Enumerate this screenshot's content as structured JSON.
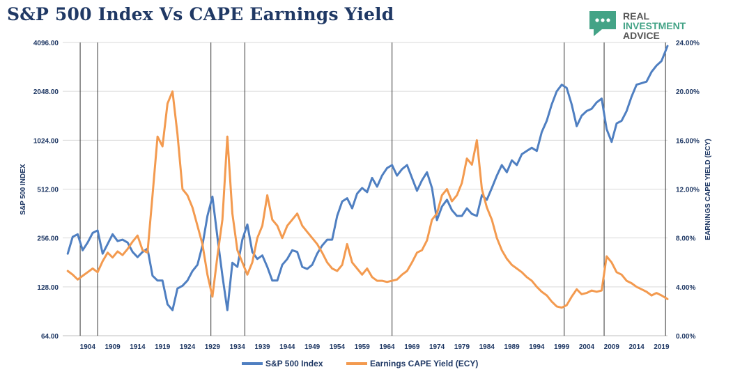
{
  "title": "S&P 500 Index Vs CAPE Earnings Yield",
  "logo": {
    "line1": "REAL",
    "line2": "INVESTMENT",
    "line3": "ADVICE",
    "icon": "speech-bubble-dots-icon"
  },
  "colors": {
    "spx": "#4f7fc1",
    "ecy": "#f39a4f",
    "text": "#1f3864",
    "grid": "#d9d9d9",
    "vline": "#333333"
  },
  "chart_data": {
    "type": "line",
    "x_ticks": [
      "1904",
      "1909",
      "1914",
      "1919",
      "1924",
      "1929",
      "1934",
      "1939",
      "1944",
      "1949",
      "1954",
      "1959",
      "1964",
      "1969",
      "1974",
      "1979",
      "1984",
      "1989",
      "1994",
      "1999",
      "2004",
      "2009",
      "2014",
      "2019"
    ],
    "left_axis": {
      "label": "S&P 500 INDEX",
      "scale": "log2",
      "ticks": [
        "64.00",
        "128.00",
        "256.00",
        "512.00",
        "1024.00",
        "2048.00",
        "4096.00"
      ],
      "range": [
        64,
        4096
      ]
    },
    "right_axis": {
      "label": "EARNINGS CAPE YIELD (ECY)",
      "ticks": [
        "0.00%",
        "4.00%",
        "8.00%",
        "12.00%",
        "16.00%",
        "20.00%",
        "24.00%"
      ],
      "range": [
        0,
        24
      ]
    },
    "vertical_lines": [
      1902.5,
      1906,
      1928.7,
      1935.5,
      1965,
      1999.5,
      2007.5,
      2019.8
    ],
    "x_range": [
      1899,
      2020.2
    ],
    "grid": "horizontal",
    "legend_position": "bottom",
    "series": [
      {
        "name": "S&P 500 Index",
        "axis": "left",
        "points": [
          [
            1900,
            205
          ],
          [
            1901,
            260
          ],
          [
            1902,
            270
          ],
          [
            1903,
            215
          ],
          [
            1904,
            240
          ],
          [
            1905,
            275
          ],
          [
            1906,
            285
          ],
          [
            1907,
            205
          ],
          [
            1908,
            235
          ],
          [
            1909,
            270
          ],
          [
            1910,
            245
          ],
          [
            1911,
            250
          ],
          [
            1912,
            240
          ],
          [
            1913,
            210
          ],
          [
            1914,
            195
          ],
          [
            1915,
            210
          ],
          [
            1916,
            220
          ],
          [
            1917,
            150
          ],
          [
            1918,
            140
          ],
          [
            1919,
            140
          ],
          [
            1920,
            100
          ],
          [
            1921,
            92
          ],
          [
            1922,
            125
          ],
          [
            1923,
            130
          ],
          [
            1924,
            140
          ],
          [
            1925,
            160
          ],
          [
            1926,
            175
          ],
          [
            1927,
            230
          ],
          [
            1928,
            350
          ],
          [
            1929,
            460
          ],
          [
            1930,
            260
          ],
          [
            1931,
            150
          ],
          [
            1932,
            92
          ],
          [
            1933,
            180
          ],
          [
            1934,
            170
          ],
          [
            1935,
            250
          ],
          [
            1936,
            310
          ],
          [
            1937,
            210
          ],
          [
            1938,
            190
          ],
          [
            1939,
            200
          ],
          [
            1940,
            170
          ],
          [
            1941,
            140
          ],
          [
            1942,
            140
          ],
          [
            1943,
            175
          ],
          [
            1944,
            190
          ],
          [
            1945,
            215
          ],
          [
            1946,
            210
          ],
          [
            1947,
            170
          ],
          [
            1948,
            165
          ],
          [
            1949,
            175
          ],
          [
            1950,
            205
          ],
          [
            1951,
            230
          ],
          [
            1952,
            250
          ],
          [
            1953,
            250
          ],
          [
            1954,
            350
          ],
          [
            1955,
            430
          ],
          [
            1956,
            450
          ],
          [
            1957,
            390
          ],
          [
            1958,
            480
          ],
          [
            1959,
            520
          ],
          [
            1960,
            490
          ],
          [
            1961,
            600
          ],
          [
            1962,
            530
          ],
          [
            1963,
            620
          ],
          [
            1964,
            690
          ],
          [
            1965,
            720
          ],
          [
            1966,
            620
          ],
          [
            1967,
            680
          ],
          [
            1968,
            720
          ],
          [
            1969,
            600
          ],
          [
            1970,
            500
          ],
          [
            1971,
            580
          ],
          [
            1972,
            650
          ],
          [
            1973,
            520
          ],
          [
            1974,
            330
          ],
          [
            1975,
            400
          ],
          [
            1976,
            440
          ],
          [
            1977,
            380
          ],
          [
            1978,
            350
          ],
          [
            1979,
            350
          ],
          [
            1980,
            390
          ],
          [
            1981,
            360
          ],
          [
            1982,
            350
          ],
          [
            1983,
            470
          ],
          [
            1984,
            440
          ],
          [
            1985,
            520
          ],
          [
            1986,
            620
          ],
          [
            1987,
            720
          ],
          [
            1988,
            650
          ],
          [
            1989,
            770
          ],
          [
            1990,
            720
          ],
          [
            1991,
            840
          ],
          [
            1992,
            880
          ],
          [
            1993,
            920
          ],
          [
            1994,
            880
          ],
          [
            1995,
            1150
          ],
          [
            1996,
            1350
          ],
          [
            1997,
            1700
          ],
          [
            1998,
            2050
          ],
          [
            1999,
            2250
          ],
          [
            2000,
            2150
          ],
          [
            2001,
            1700
          ],
          [
            2002,
            1250
          ],
          [
            2003,
            1450
          ],
          [
            2004,
            1550
          ],
          [
            2005,
            1600
          ],
          [
            2006,
            1750
          ],
          [
            2007,
            1850
          ],
          [
            2008,
            1200
          ],
          [
            2009,
            1000
          ],
          [
            2010,
            1300
          ],
          [
            2011,
            1350
          ],
          [
            2012,
            1550
          ],
          [
            2013,
            1900
          ],
          [
            2014,
            2250
          ],
          [
            2015,
            2300
          ],
          [
            2016,
            2350
          ],
          [
            2017,
            2700
          ],
          [
            2018,
            2950
          ],
          [
            2019,
            3150
          ],
          [
            2020.2,
            3900
          ]
        ]
      },
      {
        "name": "Earnings CAPE Yield (ECY)",
        "axis": "right",
        "points": [
          [
            1900,
            5.3
          ],
          [
            1901,
            5.0
          ],
          [
            1902,
            4.6
          ],
          [
            1903,
            4.9
          ],
          [
            1904,
            5.2
          ],
          [
            1905,
            5.5
          ],
          [
            1906,
            5.2
          ],
          [
            1907,
            6.1
          ],
          [
            1908,
            6.8
          ],
          [
            1909,
            6.4
          ],
          [
            1910,
            6.9
          ],
          [
            1911,
            6.6
          ],
          [
            1912,
            7.1
          ],
          [
            1913,
            7.7
          ],
          [
            1914,
            8.2
          ],
          [
            1915,
            7.0
          ],
          [
            1916,
            6.8
          ],
          [
            1917,
            11.5
          ],
          [
            1918,
            16.3
          ],
          [
            1919,
            15.5
          ],
          [
            1920,
            19.0
          ],
          [
            1921,
            20.0
          ],
          [
            1922,
            16.5
          ],
          [
            1923,
            12.0
          ],
          [
            1924,
            11.5
          ],
          [
            1925,
            10.5
          ],
          [
            1926,
            9.0
          ],
          [
            1927,
            7.5
          ],
          [
            1928,
            5.0
          ],
          [
            1929,
            3.2
          ],
          [
            1930,
            6.5
          ],
          [
            1931,
            9.5
          ],
          [
            1932,
            16.3
          ],
          [
            1933,
            10.0
          ],
          [
            1934,
            7.0
          ],
          [
            1935,
            6.0
          ],
          [
            1936,
            5.0
          ],
          [
            1937,
            6.0
          ],
          [
            1938,
            8.0
          ],
          [
            1939,
            9.0
          ],
          [
            1940,
            11.5
          ],
          [
            1941,
            9.5
          ],
          [
            1942,
            9.0
          ],
          [
            1943,
            8.0
          ],
          [
            1944,
            9.0
          ],
          [
            1945,
            9.5
          ],
          [
            1946,
            10.0
          ],
          [
            1947,
            9.0
          ],
          [
            1948,
            8.5
          ],
          [
            1949,
            8.0
          ],
          [
            1950,
            7.5
          ],
          [
            1951,
            6.8
          ],
          [
            1952,
            6.0
          ],
          [
            1953,
            5.5
          ],
          [
            1954,
            5.3
          ],
          [
            1955,
            5.8
          ],
          [
            1956,
            7.5
          ],
          [
            1957,
            6.0
          ],
          [
            1958,
            5.5
          ],
          [
            1959,
            5.0
          ],
          [
            1960,
            5.5
          ],
          [
            1961,
            4.8
          ],
          [
            1962,
            4.5
          ],
          [
            1963,
            4.5
          ],
          [
            1964,
            4.4
          ],
          [
            1965,
            4.5
          ],
          [
            1966,
            4.6
          ],
          [
            1967,
            5.0
          ],
          [
            1968,
            5.3
          ],
          [
            1969,
            6.0
          ],
          [
            1970,
            6.8
          ],
          [
            1971,
            7.0
          ],
          [
            1972,
            7.8
          ],
          [
            1973,
            9.5
          ],
          [
            1974,
            10.0
          ],
          [
            1975,
            11.5
          ],
          [
            1976,
            12.0
          ],
          [
            1977,
            11.0
          ],
          [
            1978,
            11.5
          ],
          [
            1979,
            12.5
          ],
          [
            1980,
            14.5
          ],
          [
            1981,
            14.0
          ],
          [
            1982,
            16.0
          ],
          [
            1983,
            12.0
          ],
          [
            1984,
            10.5
          ],
          [
            1985,
            9.5
          ],
          [
            1986,
            8.0
          ],
          [
            1987,
            7.0
          ],
          [
            1988,
            6.3
          ],
          [
            1989,
            5.8
          ],
          [
            1990,
            5.5
          ],
          [
            1991,
            5.2
          ],
          [
            1992,
            4.8
          ],
          [
            1993,
            4.5
          ],
          [
            1994,
            4.0
          ],
          [
            1995,
            3.6
          ],
          [
            1996,
            3.3
          ],
          [
            1997,
            2.8
          ],
          [
            1998,
            2.4
          ],
          [
            1999,
            2.3
          ],
          [
            2000,
            2.5
          ],
          [
            2001,
            3.2
          ],
          [
            2002,
            3.8
          ],
          [
            2003,
            3.4
          ],
          [
            2004,
            3.5
          ],
          [
            2005,
            3.7
          ],
          [
            2006,
            3.6
          ],
          [
            2007,
            3.7
          ],
          [
            2008,
            6.5
          ],
          [
            2009,
            6.0
          ],
          [
            2010,
            5.2
          ],
          [
            2011,
            5.0
          ],
          [
            2012,
            4.5
          ],
          [
            2013,
            4.3
          ],
          [
            2014,
            4.0
          ],
          [
            2015,
            3.8
          ],
          [
            2016,
            3.6
          ],
          [
            2017,
            3.3
          ],
          [
            2018,
            3.5
          ],
          [
            2019,
            3.3
          ],
          [
            2020.2,
            3.0
          ]
        ]
      }
    ]
  }
}
